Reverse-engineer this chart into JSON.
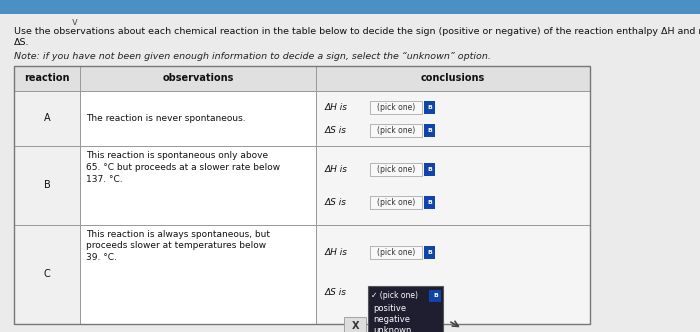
{
  "title_line1": "Use the observations about each chemical reaction in the table below to decide the sign (positive or negative) of the reaction enthalpy ΔH and reaction entropy",
  "title_line2": "ΔS.",
  "note": "Note: if you have not been given enough information to decide a sign, select the “unknown” option.",
  "reactions": [
    "A",
    "B",
    "C"
  ],
  "observations": [
    "The reaction is never spontaneous.",
    "This reaction is spontaneous only above\n65. °C but proceeds at a slower rate below\n137. °C.",
    "This reaction is always spontaneous, but\nproceeds slower at temperatures below\n39. °C."
  ],
  "col_headers": [
    "reaction",
    "observations",
    "conclusions"
  ],
  "dh_label": "ΔH is",
  "ds_label": "ΔS is",
  "pick_one_label": "(pick one)",
  "dropdown_items": [
    "positive",
    "negative",
    "unknown"
  ],
  "dropdown_selected": "✓ (pick one)",
  "x_label": "X",
  "bg_color": "#d8d8d8",
  "page_bg": "#f0f0f0",
  "table_bg": "#ffffff",
  "header_bg": "#e8e8e8",
  "obs_bg": "#ffffff",
  "react_bg": "#f0f0f0",
  "conc_bg": "#f8f8f8",
  "dropdown_bg": "#222233",
  "dropdown_text": "#ffffff",
  "cell_border": "#999999",
  "top_bar_color": "#4a90c4",
  "text_color": "#111111",
  "note_color": "#222222",
  "pick_one_box_color": "#1144aa",
  "pick_one_border": "#aaaaaa"
}
